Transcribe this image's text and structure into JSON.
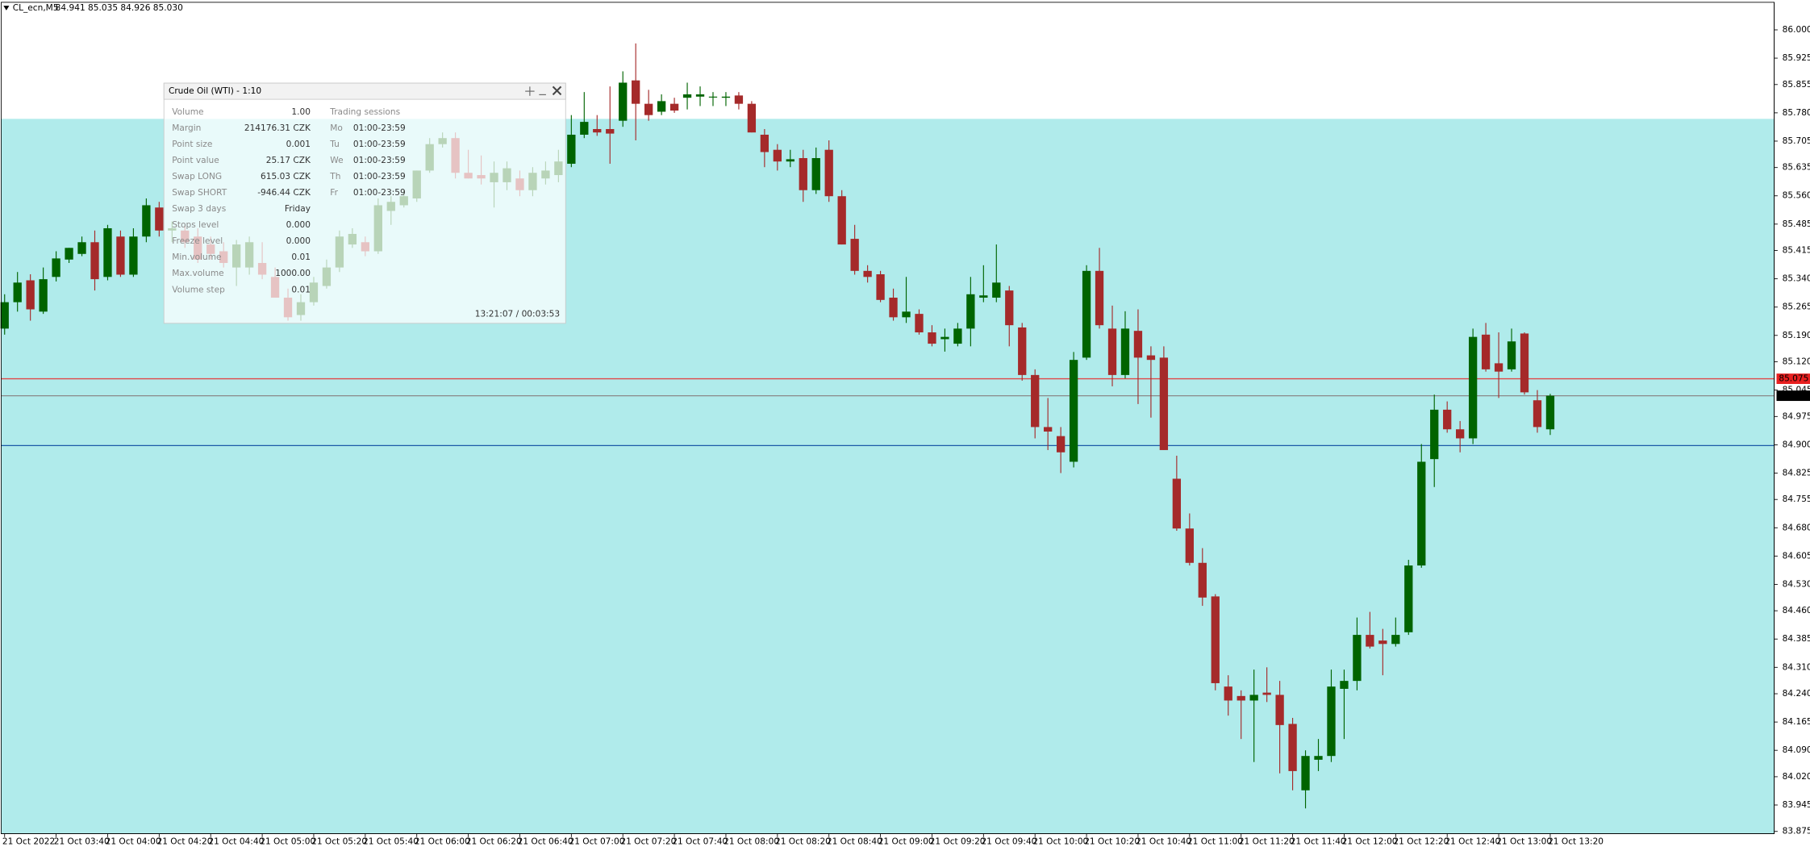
{
  "chart_data": {
    "type": "candlestick",
    "symbol": "CL_ecn,M5",
    "quote": "84.941 85.035 84.926 85.030",
    "up_color": "#006400",
    "down_color": "#a52a2a",
    "categories": [
      "21 Oct 2022",
      null,
      null,
      null,
      "21 Oct 03:40",
      null,
      null,
      null,
      "21 Oct 04:00",
      null,
      null,
      null,
      "21 Oct 04:20",
      null,
      null,
      null,
      "21 Oct 04:40",
      null,
      null,
      null,
      "21 Oct 05:00",
      null,
      null,
      null,
      "21 Oct 05:20",
      null,
      null,
      null,
      "21 Oct 05:40",
      null,
      null,
      null,
      "21 Oct 06:00",
      null,
      null,
      null,
      "21 Oct 06:20",
      null,
      null,
      null,
      "21 Oct 06:40",
      null,
      null,
      null,
      "21 Oct 07:00",
      null,
      null,
      null,
      "21 Oct 07:20",
      null,
      null,
      null,
      "21 Oct 07:40",
      null,
      null,
      null,
      "21 Oct 08:00",
      null,
      null,
      null,
      "21 Oct 08:20",
      null,
      null,
      null,
      "21 Oct 08:40",
      null,
      null,
      null,
      "21 Oct 09:00",
      null,
      null,
      null,
      "21 Oct 09:20",
      null,
      null,
      null,
      "21 Oct 09:40",
      null,
      null,
      null,
      "21 Oct 10:00",
      null,
      null,
      null,
      "21 Oct 10:20",
      null,
      null,
      null,
      "21 Oct 10:40",
      null,
      null,
      null,
      "21 Oct 11:00",
      null,
      null,
      null,
      "21 Oct 11:20",
      null,
      null,
      null,
      "21 Oct 11:40",
      null,
      null,
      null,
      "21 Oct 12:00",
      null,
      null,
      null,
      "21 Oct 12:20",
      null,
      null,
      null,
      "21 Oct 12:40",
      null,
      null,
      null,
      "21 Oct 13:00",
      null,
      null,
      null,
      "21 Oct 13:20"
    ],
    "open": [
      85.208,
      85.278,
      85.336,
      85.253,
      85.345,
      85.391,
      85.406,
      85.437,
      85.345,
      85.452,
      85.351,
      85.452,
      85.529,
      85.468,
      85.468,
      85.452,
      85.431,
      85.413,
      85.37,
      85.37,
      85.382,
      85.345,
      85.29,
      85.244,
      85.278,
      85.321,
      85.37,
      85.431,
      85.437,
      85.413,
      85.52,
      85.535,
      85.553,
      85.627,
      85.697,
      85.713,
      85.621,
      85.615,
      85.596,
      85.596,
      85.606,
      85.575,
      85.606,
      85.615,
      85.645,
      85.722,
      85.737,
      85.737,
      85.759,
      85.866,
      85.804,
      85.783,
      85.804,
      85.82,
      85.823,
      85.823,
      85.82,
      85.826,
      85.804,
      85.722,
      85.682,
      85.651,
      85.66,
      85.575,
      85.682,
      85.559,
      85.446,
      85.361,
      85.352,
      85.29,
      85.238,
      85.247,
      85.198,
      85.18,
      85.168,
      85.208,
      85.29,
      85.29,
      85.309,
      85.211,
      85.085,
      84.947,
      84.923,
      84.855,
      85.131,
      85.361,
      85.208,
      85.085,
      85.202,
      85.137,
      85.131,
      84.81,
      84.678,
      84.587,
      84.498,
      84.259,
      84.234,
      84.222,
      84.243,
      84.237,
      84.16,
      83.984,
      84.065,
      84.075,
      84.253,
      84.274,
      84.396,
      84.381,
      84.372,
      84.403,
      84.58,
      84.862,
      84.993,
      84.941,
      84.917,
      85.192,
      85.116,
      85.1,
      85.195,
      85.018,
      84.941
    ],
    "high": [
      85.299,
      85.358,
      85.352,
      85.37,
      85.413,
      85.422,
      85.452,
      85.468,
      85.483,
      85.468,
      85.474,
      85.553,
      85.544,
      85.492,
      85.483,
      85.474,
      85.452,
      85.437,
      85.443,
      85.452,
      85.437,
      85.37,
      85.314,
      85.299,
      85.345,
      85.391,
      85.468,
      85.474,
      85.452,
      85.553,
      85.559,
      85.575,
      85.627,
      85.713,
      85.728,
      85.728,
      85.682,
      85.667,
      85.651,
      85.651,
      85.627,
      85.636,
      85.651,
      85.682,
      85.774,
      85.835,
      85.774,
      85.85,
      85.89,
      85.964,
      85.841,
      85.829,
      85.82,
      85.86,
      85.85,
      85.835,
      85.835,
      85.835,
      85.811,
      85.737,
      85.697,
      85.682,
      85.682,
      85.688,
      85.707,
      85.575,
      85.483,
      85.376,
      85.361,
      85.314,
      85.345,
      85.259,
      85.217,
      85.208,
      85.223,
      85.345,
      85.376,
      85.431,
      85.321,
      85.223,
      85.1,
      85.024,
      84.947,
      85.146,
      85.376,
      85.422,
      85.269,
      85.254,
      85.259,
      85.161,
      85.161,
      84.871,
      84.718,
      84.626,
      84.504,
      84.289,
      84.249,
      84.304,
      84.31,
      84.274,
      84.176,
      84.09,
      84.12,
      84.304,
      84.304,
      84.442,
      84.457,
      84.412,
      84.442,
      84.595,
      84.902,
      85.033,
      85.015,
      84.963,
      85.208,
      85.223,
      85.198,
      85.208,
      85.198,
      85.045,
      85.035
    ],
    "low": [
      85.192,
      85.253,
      85.229,
      85.247,
      85.333,
      85.382,
      85.4,
      85.309,
      85.336,
      85.345,
      85.345,
      85.437,
      85.452,
      85.437,
      85.422,
      85.382,
      85.391,
      85.37,
      85.321,
      85.351,
      85.339,
      85.29,
      85.229,
      85.229,
      85.269,
      85.314,
      85.358,
      85.422,
      85.4,
      85.406,
      85.483,
      85.529,
      85.544,
      85.621,
      85.688,
      85.606,
      85.606,
      85.59,
      85.529,
      85.575,
      85.559,
      85.559,
      85.59,
      85.596,
      85.636,
      85.713,
      85.719,
      85.645,
      85.743,
      85.707,
      85.759,
      85.774,
      85.78,
      85.789,
      85.798,
      85.798,
      85.798,
      85.789,
      85.728,
      85.636,
      85.627,
      85.636,
      85.544,
      85.565,
      85.544,
      85.431,
      85.351,
      85.33,
      85.278,
      85.229,
      85.223,
      85.192,
      85.161,
      85.147,
      85.161,
      85.161,
      85.278,
      85.278,
      85.161,
      85.07,
      84.917,
      84.886,
      84.825,
      84.84,
      85.125,
      85.208,
      85.055,
      85.076,
      85.008,
      84.972,
      84.886,
      84.672,
      84.58,
      84.473,
      84.249,
      84.182,
      84.12,
      84.059,
      84.218,
      84.029,
      83.984,
      83.936,
      84.035,
      84.059,
      84.12,
      84.249,
      84.36,
      84.289,
      84.365,
      84.396,
      84.574,
      84.788,
      84.932,
      84.88,
      84.902,
      85.094,
      85.024,
      85.094,
      85.033,
      84.932,
      84.926
    ],
    "close": [
      85.278,
      85.33,
      85.259,
      85.339,
      85.394,
      85.422,
      85.437,
      85.339,
      85.474,
      85.351,
      85.452,
      85.535,
      85.468,
      85.474,
      85.437,
      85.391,
      85.406,
      85.382,
      85.431,
      85.437,
      85.351,
      85.29,
      85.238,
      85.278,
      85.33,
      85.37,
      85.452,
      85.459,
      85.413,
      85.535,
      85.544,
      85.559,
      85.627,
      85.697,
      85.713,
      85.621,
      85.606,
      85.606,
      85.621,
      85.633,
      85.575,
      85.621,
      85.627,
      85.651,
      85.722,
      85.756,
      85.728,
      85.725,
      85.86,
      85.804,
      85.774,
      85.811,
      85.786,
      85.829,
      85.829,
      85.823,
      85.823,
      85.804,
      85.728,
      85.676,
      85.651,
      85.657,
      85.575,
      85.66,
      85.559,
      85.431,
      85.361,
      85.345,
      85.284,
      85.238,
      85.253,
      85.198,
      85.168,
      85.186,
      85.208,
      85.299,
      85.296,
      85.33,
      85.217,
      85.085,
      84.947,
      84.935,
      84.88,
      85.125,
      85.361,
      85.217,
      85.085,
      85.208,
      85.131,
      85.125,
      84.886,
      84.678,
      84.587,
      84.495,
      84.268,
      84.222,
      84.222,
      84.237,
      84.237,
      84.157,
      84.035,
      84.075,
      84.075,
      84.259,
      84.274,
      84.396,
      84.365,
      84.372,
      84.396,
      84.58,
      84.855,
      84.993,
      84.941,
      84.917,
      85.186,
      85.1,
      85.094,
      85.174,
      85.039,
      84.947,
      85.03
    ],
    "ylim": [
      83.869,
      86.073
    ],
    "yticks": [
      {
        "value": 86,
        "label": "86.000"
      },
      85.925,
      85.855,
      {
        "value": 85.78,
        "label": "85.780"
      },
      85.705,
      85.635,
      {
        "value": 85.56,
        "label": "85.560"
      },
      85.485,
      85.415,
      {
        "value": 85.34,
        "label": "85.340"
      },
      85.265,
      {
        "value": 85.19,
        "label": "85.190"
      },
      {
        "value": 85.12,
        "label": "85.120"
      },
      85.045,
      84.975,
      {
        "value": 84.9,
        "label": "84.900"
      },
      84.825,
      84.755,
      {
        "value": 84.68,
        "label": "84.680"
      },
      84.605,
      {
        "value": 84.53,
        "label": "84.530"
      },
      {
        "value": 84.46,
        "label": "84.460"
      },
      84.385,
      {
        "value": 84.31,
        "label": "84.310"
      },
      {
        "value": 84.24,
        "label": "84.240"
      },
      84.165,
      {
        "value": 84.09,
        "label": "84.090"
      },
      {
        "value": 84.02,
        "label": "84.020"
      },
      83.945,
      83.875
    ],
    "zone": {
      "from": 85.764,
      "color": "#b0ebeb"
    },
    "levels": [
      {
        "value": 85.075,
        "label": "85.075",
        "color": "#e04848",
        "label_bg": "#e82020",
        "label_color": "#ffffff"
      },
      {
        "value": 85.03,
        "label": "85.030",
        "color": "#8a8a8a",
        "label_bg": "#000000",
        "label_color": "#ffffff"
      },
      {
        "value": 84.898,
        "color": "#1c5aa8"
      }
    ]
  },
  "panel": {
    "title": "Crude Oil (WTI) - 1:10",
    "specs": [
      [
        "Volume",
        "1.00"
      ],
      [
        "Margin",
        "214176.31 CZK"
      ],
      [
        "Point size",
        "0.001"
      ],
      [
        "Point value",
        "25.17 CZK"
      ],
      [
        "Swap LONG",
        "615.03 CZK"
      ],
      [
        "Swap SHORT",
        "-946.44 CZK"
      ],
      [
        "Swap 3 days",
        "Friday"
      ],
      [
        "Stops level",
        "0.000"
      ],
      [
        "Freeze level",
        "0.000"
      ],
      [
        "Min.volume",
        "0.01"
      ],
      [
        "Max.volume",
        "1000.00"
      ],
      [
        "Volume step",
        "0.01"
      ]
    ],
    "sessions_title": "Trading sessions",
    "sessions": [
      [
        "Mo",
        "01:00-23:59"
      ],
      [
        "Tu",
        "01:00-23:59"
      ],
      [
        "We",
        "01:00-23:59"
      ],
      [
        "Th",
        "01:00-23:59"
      ],
      [
        "Fr",
        "01:00-23:59"
      ]
    ],
    "clock": "13:21:07 / 00:03:53"
  }
}
